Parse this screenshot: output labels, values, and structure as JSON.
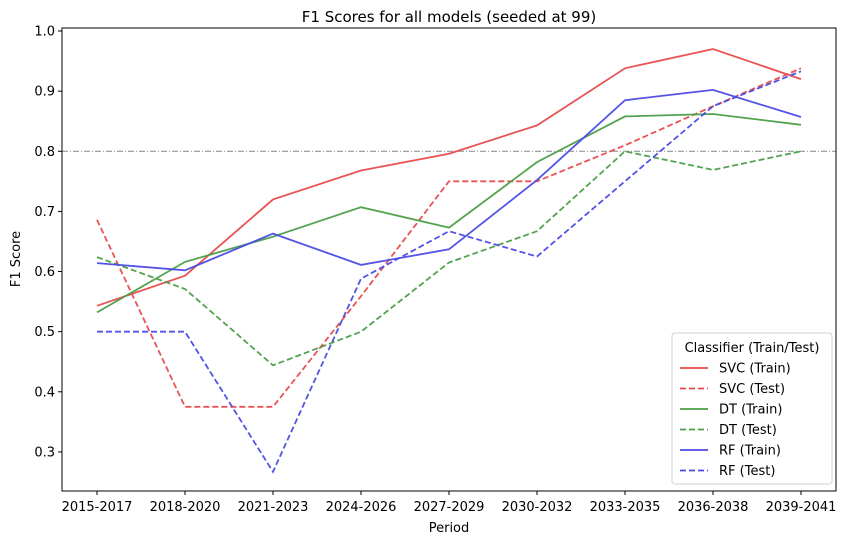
{
  "chart_data": {
    "type": "line",
    "title": "F1 Scores for all models (seeded at 99)",
    "xlabel": "Period",
    "ylabel": "F1 Score",
    "categories": [
      "2015-2017",
      "2018-2020",
      "2021-2023",
      "2024-2026",
      "2027-2029",
      "2030-2032",
      "2033-2035",
      "2036-2038",
      "2039-2041"
    ],
    "ylim": [
      0.235,
      1.005
    ],
    "yticks": [
      "0.3",
      "0.4",
      "0.5",
      "0.6",
      "0.7",
      "0.8",
      "0.9",
      "1.0"
    ],
    "reference_line": 0.8,
    "legend_title": "Classifier (Train/Test)",
    "legend_position": "lower-right",
    "series": [
      {
        "name": "SVC (Train)",
        "color": "#e84a4a",
        "dash": "solid",
        "values": [
          0.543,
          0.593,
          0.72,
          0.768,
          0.796,
          0.843,
          0.938,
          0.97,
          0.92
        ]
      },
      {
        "name": "SVC (Test)",
        "color": "#e84a4a",
        "dash": "dashed",
        "values": [
          0.686,
          0.375,
          0.375,
          0.559,
          0.75,
          0.75,
          0.81,
          0.875,
          0.938
        ]
      },
      {
        "name": "DT (Train)",
        "color": "#4a9e45",
        "dash": "solid",
        "values": [
          0.532,
          0.616,
          0.658,
          0.707,
          0.673,
          0.782,
          0.858,
          0.862,
          0.844
        ]
      },
      {
        "name": "DT (Test)",
        "color": "#4a9e45",
        "dash": "dashed",
        "values": [
          0.624,
          0.571,
          0.444,
          0.5,
          0.615,
          0.667,
          0.8,
          0.769,
          0.8
        ]
      },
      {
        "name": "RF (Train)",
        "color": "#4a4ae6",
        "dash": "solid",
        "values": [
          0.614,
          0.602,
          0.663,
          0.611,
          0.637,
          0.752,
          0.885,
          0.902,
          0.857
        ]
      },
      {
        "name": "RF (Test)",
        "color": "#4a4ae6",
        "dash": "dashed",
        "values": [
          0.5,
          0.5,
          0.267,
          0.588,
          0.667,
          0.625,
          0.75,
          0.875,
          0.933
        ]
      }
    ]
  }
}
